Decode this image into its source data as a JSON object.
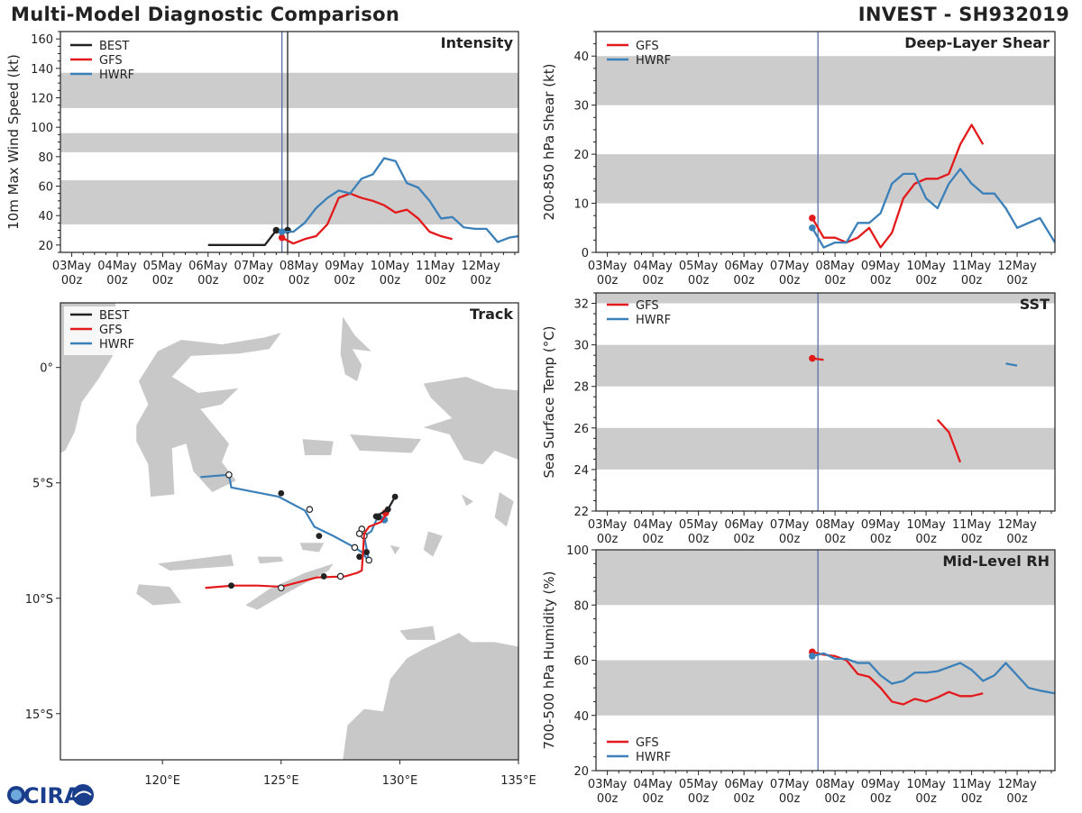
{
  "header": {
    "title": "Multi-Model Diagnostic Comparison",
    "storm": "INVEST - SH932019"
  },
  "colors": {
    "BEST": "#222222",
    "GFS": "#e31a1c",
    "HWRF": "#3b80b9",
    "band": "#cccccc",
    "init": "#5a6fa8"
  },
  "logo_text": "CIRA",
  "time_axis": {
    "labels_top": [
      "03May",
      "04May",
      "05May",
      "06May",
      "07May",
      "08May",
      "09May",
      "10May",
      "11May",
      "12May"
    ],
    "labels_bottom": [
      "00z",
      "00z",
      "00z",
      "00z",
      "00z",
      "00z",
      "00z",
      "00z",
      "00z",
      "00z"
    ],
    "init_time": 4.625
  },
  "chart_data": [
    {
      "id": "intensity",
      "type": "line",
      "title": "Intensity",
      "ylabel": "10m Max Wind Speed (kt)",
      "xlim": [
        -0.25,
        9.83
      ],
      "ylim": [
        15,
        165
      ],
      "yticks": [
        20,
        40,
        60,
        80,
        100,
        120,
        140,
        160
      ],
      "bands": [
        [
          34,
          64
        ],
        [
          83,
          96
        ],
        [
          113,
          137
        ]
      ],
      "best_time_marker": 4.75,
      "legend": [
        "BEST",
        "GFS",
        "HWRF"
      ],
      "series": [
        {
          "name": "BEST",
          "x": [
            3.0,
            3.25,
            3.5,
            3.75,
            4.0,
            4.25,
            4.5,
            4.75
          ],
          "y": [
            20,
            20,
            20,
            20,
            20,
            20,
            30,
            30
          ],
          "markers": [
            4.5,
            4.75
          ]
        },
        {
          "name": "GFS",
          "x": [
            4.625,
            4.875,
            5.125,
            5.375,
            5.625,
            5.875,
            6.125,
            6.375,
            6.625,
            6.875,
            7.125,
            7.375,
            7.625,
            7.875,
            8.125,
            8.375
          ],
          "y": [
            25,
            21,
            24,
            26,
            34,
            52,
            55,
            52,
            50,
            47,
            42,
            44,
            38,
            29,
            26,
            24
          ],
          "markers": [
            4.625
          ]
        },
        {
          "name": "HWRF",
          "x": [
            4.625,
            4.875,
            5.125,
            5.375,
            5.625,
            5.875,
            6.125,
            6.375,
            6.625,
            6.875,
            7.125,
            7.375,
            7.625,
            7.875,
            8.125,
            8.375,
            8.625,
            8.875,
            9.125,
            9.375,
            9.625,
            9.83
          ],
          "y": [
            29,
            29,
            35,
            45,
            52,
            57,
            55,
            65,
            68,
            79,
            77,
            62,
            59,
            50,
            38,
            39,
            32,
            31,
            31,
            22,
            25,
            26
          ],
          "markers": [
            4.625
          ]
        }
      ]
    },
    {
      "id": "shear",
      "type": "line",
      "title": "Deep-Layer Shear",
      "ylabel": "200-850 hPa Shear (kt)",
      "xlim": [
        -0.25,
        9.83
      ],
      "ylim": [
        0,
        45
      ],
      "yticks": [
        0,
        10,
        20,
        30,
        40
      ],
      "bands": [
        [
          10,
          20
        ],
        [
          30,
          40
        ]
      ],
      "legend": [
        "GFS",
        "HWRF"
      ],
      "series": [
        {
          "name": "GFS",
          "x": [
            4.5,
            4.75,
            5.0,
            5.25,
            5.5,
            5.75,
            6.0,
            6.25,
            6.5,
            6.75,
            7.0,
            7.25,
            7.5,
            7.75,
            8.0,
            8.25
          ],
          "y": [
            7,
            3,
            3,
            2,
            3,
            5,
            1,
            4,
            11,
            14,
            15,
            15,
            16,
            22,
            26,
            22
          ],
          "markers": [
            4.5
          ]
        },
        {
          "name": "HWRF",
          "x": [
            4.5,
            4.75,
            5.0,
            5.25,
            5.5,
            5.75,
            6.0,
            6.25,
            6.5,
            6.75,
            7.0,
            7.25,
            7.5,
            7.75,
            8.0,
            8.25,
            8.5,
            8.75,
            9.0,
            9.25,
            9.5,
            9.83
          ],
          "y": [
            5,
            1,
            2,
            2,
            6,
            6,
            8,
            14,
            16,
            16,
            11,
            9,
            14,
            17,
            14,
            12,
            12,
            9,
            5,
            6,
            7,
            2
          ],
          "markers": [
            4.5
          ]
        }
      ]
    },
    {
      "id": "sst",
      "type": "line",
      "title": "SST",
      "ylabel": "Sea Surface Temp (°C)",
      "xlim": [
        -0.25,
        9.83
      ],
      "ylim": [
        22,
        32.5
      ],
      "yticks": [
        22,
        24,
        26,
        28,
        30,
        32
      ],
      "bands": [
        [
          24,
          26
        ],
        [
          28,
          30
        ],
        [
          32,
          32.5
        ]
      ],
      "legend": [
        "GFS",
        "HWRF"
      ],
      "series": [
        {
          "name": "GFS",
          "segments": [
            {
              "x": [
                4.5,
                4.75
              ],
              "y": [
                29.35,
                29.28
              ]
            },
            {
              "x": [
                7.25,
                7.5,
                7.75
              ],
              "y": [
                26.4,
                25.8,
                24.35
              ]
            }
          ],
          "markers": [
            [
              4.5,
              29.35
            ]
          ]
        },
        {
          "name": "HWRF",
          "segments": [
            {
              "x": [
                8.75,
                9.0
              ],
              "y": [
                29.1,
                29.0
              ]
            }
          ],
          "markers": []
        }
      ]
    },
    {
      "id": "rh",
      "type": "line",
      "title": "Mid-Level RH",
      "ylabel": "700-500 hPa Humidity (%)",
      "xlim": [
        -0.25,
        9.83
      ],
      "ylim": [
        20,
        100
      ],
      "yticks": [
        20,
        40,
        60,
        80,
        100
      ],
      "bands": [
        [
          40,
          60
        ],
        [
          80,
          100
        ]
      ],
      "legend": [
        "GFS",
        "HWRF"
      ],
      "series": [
        {
          "name": "GFS",
          "x": [
            4.5,
            4.75,
            5.0,
            5.25,
            5.5,
            5.75,
            6.0,
            6.25,
            6.5,
            6.75,
            7.0,
            7.25,
            7.5,
            7.75,
            8.0,
            8.25
          ],
          "y": [
            63,
            62,
            61.5,
            60,
            55,
            54,
            50,
            45,
            44,
            46,
            45,
            46.5,
            48.5,
            47,
            47,
            48
          ],
          "markers": [
            4.5
          ]
        },
        {
          "name": "HWRF",
          "x": [
            4.5,
            4.75,
            5.0,
            5.25,
            5.5,
            5.75,
            6.0,
            6.25,
            6.5,
            6.75,
            7.0,
            7.25,
            7.5,
            7.75,
            8.0,
            8.25,
            8.5,
            8.75,
            9.0,
            9.25,
            9.5,
            9.83
          ],
          "y": [
            61.5,
            62.5,
            60.5,
            60.5,
            59,
            59,
            54.5,
            51.5,
            52.5,
            55.5,
            55.5,
            56,
            57.5,
            59,
            56.5,
            52.5,
            54.5,
            59,
            54.5,
            50,
            49,
            48
          ],
          "markers": [
            4.5
          ]
        }
      ]
    },
    {
      "id": "track",
      "type": "scatter",
      "title": "Track",
      "xlim": [
        115.7,
        135.0
      ],
      "ylim": [
        -17.0,
        2.8
      ],
      "xticks": [
        120,
        125,
        130,
        135
      ],
      "xticklabels": [
        "120°E",
        "125°E",
        "130°E",
        "135°E"
      ],
      "yticks": [
        0,
        -5,
        -10,
        -15
      ],
      "yticklabels": [
        "0°",
        "5°S",
        "10°S",
        "15°S"
      ],
      "legend": [
        "BEST",
        "GFS",
        "HWRF"
      ],
      "series": [
        {
          "name": "BEST",
          "lon": [
            129.8,
            129.5,
            129.0
          ],
          "lat": [
            -5.6,
            -6.15,
            -6.45
          ],
          "dots": "filled"
        },
        {
          "name": "GFS",
          "lon": [
            129.5,
            129.2,
            128.7,
            128.5,
            128.4,
            128.2,
            127.7,
            126.5,
            125.0,
            124.0,
            123.0,
            121.8
          ],
          "lat": [
            -6.25,
            -6.7,
            -6.9,
            -7.2,
            -8.8,
            -8.9,
            -9.05,
            -9.1,
            -9.5,
            -9.45,
            -9.45,
            -9.55
          ],
          "filled": [
            [
              122.9,
              -9.45
            ],
            [
              126.8,
              -9.05
            ],
            [
              129.1,
              -6.5
            ]
          ],
          "open": [
            [
              125.0,
              -9.55
            ],
            [
              127.5,
              -9.05
            ],
            [
              128.3,
              -7.2
            ]
          ],
          "current": [
            129.4,
            -6.3
          ]
        },
        {
          "name": "HWRF",
          "lon": [
            129.4,
            129.1,
            128.8,
            128.5,
            128.7,
            128.4,
            128.1,
            127.2,
            126.4,
            126.0,
            124.9,
            122.9,
            122.8,
            121.6
          ],
          "lat": [
            -6.55,
            -6.4,
            -7.1,
            -7.3,
            -8.4,
            -8.0,
            -7.8,
            -7.3,
            -6.9,
            -6.2,
            -5.6,
            -5.2,
            -4.65,
            -4.75
          ],
          "filled": [
            [
              128.3,
              -8.2
            ],
            [
              128.6,
              -8.0
            ],
            [
              126.6,
              -7.3
            ],
            [
              125.0,
              -5.45
            ],
            [
              129.1,
              -6.45
            ]
          ],
          "open": [
            [
              128.5,
              -7.3
            ],
            [
              128.7,
              -8.35
            ],
            [
              128.1,
              -7.8
            ],
            [
              126.2,
              -6.15
            ],
            [
              122.8,
              -4.65
            ],
            [
              128.4,
              -7.0
            ]
          ],
          "current": [
            129.35,
            -6.6
          ]
        }
      ]
    }
  ]
}
